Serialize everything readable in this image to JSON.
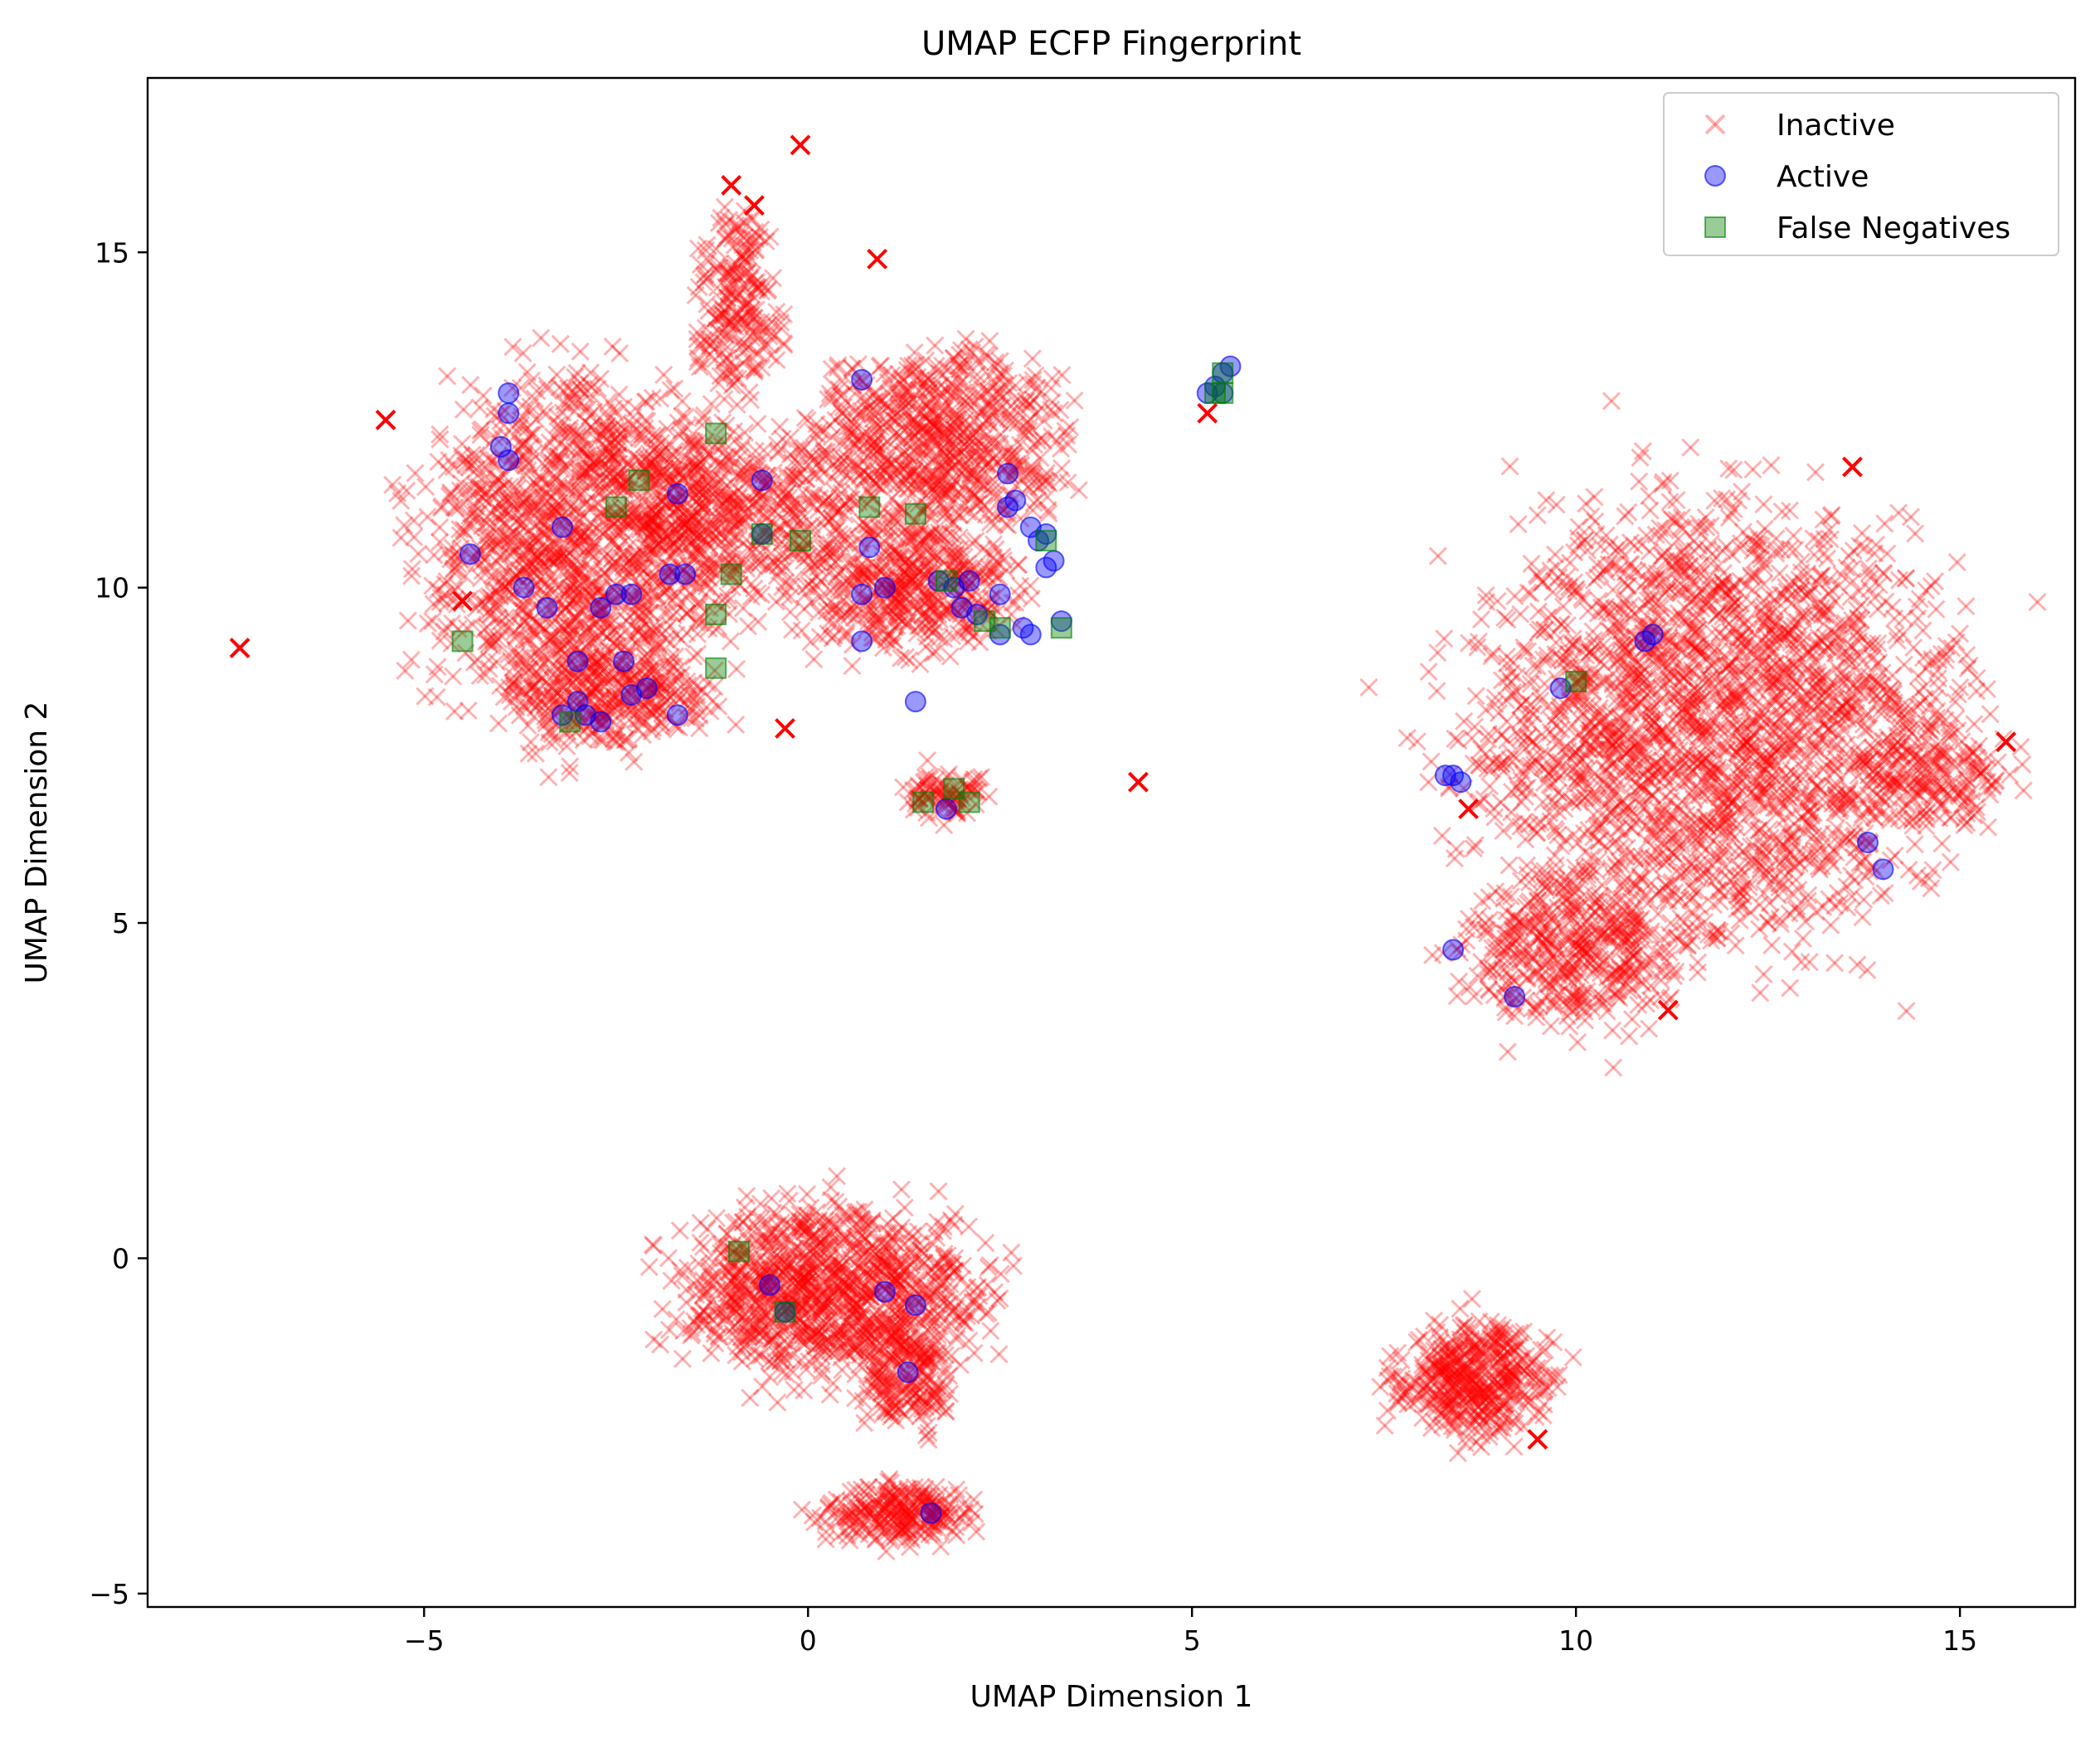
{
  "chart_data": {
    "type": "scatter",
    "title": "UMAP ECFP Fingerprint",
    "xlabel": "UMAP Dimension 1",
    "ylabel": "UMAP Dimension 2",
    "xlim": [
      -8.6,
      16.5
    ],
    "ylim": [
      -5.2,
      17.6
    ],
    "xticks": [
      -5,
      0,
      5,
      10,
      15
    ],
    "yticks": [
      -5,
      0,
      5,
      10,
      15
    ],
    "xtick_labels": [
      "−5",
      "0",
      "5",
      "10",
      "15"
    ],
    "ytick_labels": [
      "−5",
      "0",
      "5",
      "10",
      "15"
    ],
    "grid": false,
    "legend": {
      "placement": "top-right",
      "entries": [
        {
          "label": "Inactive",
          "marker": "x",
          "color": "#ff0000"
        },
        {
          "label": "Active",
          "marker": "circle",
          "color": "#0000ff"
        },
        {
          "label": "False Negatives",
          "marker": "square",
          "color": "#008000"
        }
      ]
    },
    "series": [
      {
        "name": "Inactive",
        "marker": "x",
        "color": "#ff0000",
        "opacity": 0.3,
        "clusters": [
          {
            "cx": -3.0,
            "cy": 10.6,
            "rx": 1.9,
            "ry": 2.4,
            "density": 1400
          },
          {
            "cx": -1.0,
            "cy": 11.2,
            "rx": 1.6,
            "ry": 1.2,
            "density": 500
          },
          {
            "cx": -0.9,
            "cy": 14.2,
            "rx": 0.5,
            "ry": 1.3,
            "density": 220
          },
          {
            "cx": 1.7,
            "cy": 12.2,
            "rx": 1.5,
            "ry": 1.2,
            "density": 700
          },
          {
            "cx": 1.3,
            "cy": 10.0,
            "rx": 1.4,
            "ry": 0.9,
            "density": 500
          },
          {
            "cx": -2.6,
            "cy": 8.4,
            "rx": 1.2,
            "ry": 0.7,
            "density": 300
          },
          {
            "cx": 1.8,
            "cy": 6.9,
            "rx": 0.5,
            "ry": 0.35,
            "density": 90
          },
          {
            "cx": 11.8,
            "cy": 8.0,
            "rx": 2.9,
            "ry": 3.0,
            "density": 2300
          },
          {
            "cx": 10.0,
            "cy": 4.6,
            "rx": 1.3,
            "ry": 1.1,
            "density": 450
          },
          {
            "cx": 14.6,
            "cy": 7.2,
            "rx": 0.9,
            "ry": 0.7,
            "density": 150
          },
          {
            "cx": 0.3,
            "cy": -0.5,
            "rx": 1.8,
            "ry": 1.2,
            "density": 1100
          },
          {
            "cx": 1.3,
            "cy": -1.8,
            "rx": 0.6,
            "ry": 0.7,
            "density": 180
          },
          {
            "cx": 1.2,
            "cy": -3.8,
            "rx": 0.9,
            "ry": 0.4,
            "density": 260
          },
          {
            "cx": 8.7,
            "cy": -1.8,
            "rx": 0.9,
            "ry": 0.8,
            "density": 450
          }
        ],
        "outliers": [
          [
            -7.4,
            9.1
          ],
          [
            -5.5,
            12.5
          ],
          [
            -0.1,
            16.6
          ],
          [
            -1.0,
            16.0
          ],
          [
            -0.7,
            15.7
          ],
          [
            0.9,
            14.9
          ],
          [
            -0.3,
            7.9
          ],
          [
            4.3,
            7.1
          ],
          [
            5.2,
            12.6
          ],
          [
            8.6,
            6.7
          ],
          [
            13.6,
            11.8
          ],
          [
            15.6,
            7.7
          ],
          [
            9.5,
            -2.7
          ],
          [
            11.2,
            3.7
          ],
          [
            -4.5,
            9.8
          ]
        ]
      },
      {
        "name": "Active",
        "marker": "circle",
        "color": "#0000ff",
        "opacity": 0.4,
        "points": [
          [
            -3.9,
            12.9
          ],
          [
            -3.9,
            12.6
          ],
          [
            -4.0,
            12.1
          ],
          [
            -3.9,
            11.9
          ],
          [
            -4.4,
            10.5
          ],
          [
            -3.7,
            10.0
          ],
          [
            -3.4,
            9.7
          ],
          [
            -3.2,
            10.9
          ],
          [
            -2.7,
            9.7
          ],
          [
            -2.5,
            9.9
          ],
          [
            -2.3,
            9.9
          ],
          [
            -1.8,
            10.2
          ],
          [
            -1.6,
            10.2
          ],
          [
            -1.7,
            11.4
          ],
          [
            -0.6,
            11.6
          ],
          [
            -0.6,
            10.8
          ],
          [
            -3.0,
            8.9
          ],
          [
            -2.4,
            8.9
          ],
          [
            -2.3,
            8.4
          ],
          [
            -2.1,
            8.5
          ],
          [
            -1.7,
            8.1
          ],
          [
            -3.0,
            8.3
          ],
          [
            -3.2,
            8.1
          ],
          [
            -2.9,
            8.1
          ],
          [
            -2.7,
            8.0
          ],
          [
            0.7,
            13.1
          ],
          [
            0.8,
            10.6
          ],
          [
            0.7,
            9.9
          ],
          [
            0.7,
            9.2
          ],
          [
            1.0,
            10.0
          ],
          [
            1.7,
            10.1
          ],
          [
            1.9,
            10.0
          ],
          [
            2.1,
            10.1
          ],
          [
            2.0,
            9.7
          ],
          [
            2.2,
            9.6
          ],
          [
            2.5,
            9.3
          ],
          [
            2.5,
            9.9
          ],
          [
            2.6,
            11.7
          ],
          [
            2.7,
            11.3
          ],
          [
            2.6,
            11.2
          ],
          [
            2.9,
            10.9
          ],
          [
            3.0,
            10.7
          ],
          [
            3.1,
            10.8
          ],
          [
            3.1,
            10.3
          ],
          [
            3.2,
            10.4
          ],
          [
            2.8,
            9.4
          ],
          [
            2.9,
            9.3
          ],
          [
            3.3,
            9.5
          ],
          [
            1.4,
            8.3
          ],
          [
            1.8,
            6.7
          ],
          [
            5.2,
            12.9
          ],
          [
            5.3,
            13.0
          ],
          [
            5.4,
            13.2
          ],
          [
            5.5,
            13.3
          ],
          [
            5.4,
            12.9
          ],
          [
            8.3,
            7.2
          ],
          [
            8.4,
            7.2
          ],
          [
            8.5,
            7.1
          ],
          [
            9.8,
            8.5
          ],
          [
            10.9,
            9.2
          ],
          [
            11.0,
            9.3
          ],
          [
            8.4,
            4.6
          ],
          [
            9.2,
            3.9
          ],
          [
            13.8,
            6.2
          ],
          [
            14.0,
            5.8
          ],
          [
            -0.5,
            -0.4
          ],
          [
            -0.3,
            -0.8
          ],
          [
            1.0,
            -0.5
          ],
          [
            1.4,
            -0.7
          ],
          [
            1.3,
            -1.7
          ],
          [
            1.6,
            -3.8
          ]
        ]
      },
      {
        "name": "False Negatives",
        "marker": "square",
        "color": "#008000",
        "opacity": 0.4,
        "points": [
          [
            -4.5,
            9.2
          ],
          [
            -2.5,
            11.2
          ],
          [
            -2.2,
            11.6
          ],
          [
            -1.2,
            12.3
          ],
          [
            -0.6,
            10.8
          ],
          [
            -0.1,
            10.7
          ],
          [
            -1.2,
            9.6
          ],
          [
            -1.0,
            10.2
          ],
          [
            -1.2,
            8.8
          ],
          [
            -3.1,
            8.0
          ],
          [
            0.8,
            11.2
          ],
          [
            1.4,
            11.1
          ],
          [
            1.8,
            10.1
          ],
          [
            2.3,
            9.5
          ],
          [
            2.5,
            9.4
          ],
          [
            3.1,
            10.7
          ],
          [
            3.3,
            9.4
          ],
          [
            1.9,
            7.0
          ],
          [
            1.5,
            6.8
          ],
          [
            2.1,
            6.8
          ],
          [
            5.3,
            12.9
          ],
          [
            5.4,
            12.9
          ],
          [
            5.4,
            13.2
          ],
          [
            10.0,
            8.6
          ],
          [
            -0.9,
            0.1
          ],
          [
            -0.3,
            -0.8
          ]
        ]
      }
    ]
  }
}
